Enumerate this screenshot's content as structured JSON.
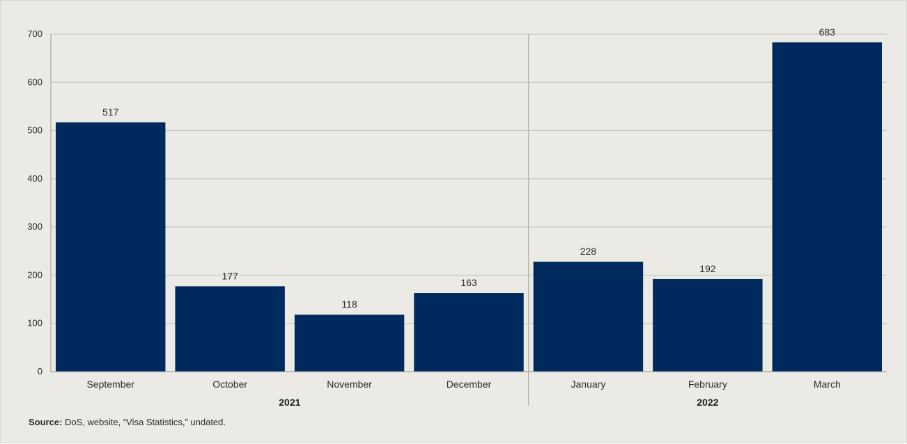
{
  "chart_data": {
    "type": "bar",
    "title": "",
    "xlabel": "",
    "ylabel": "",
    "categories": [
      "September",
      "October",
      "November",
      "December",
      "January",
      "February",
      "March"
    ],
    "values": [
      517,
      177,
      118,
      163,
      228,
      192,
      683
    ],
    "data_labels": [
      "517",
      "177",
      "118",
      "163",
      "228",
      "192",
      "683"
    ],
    "groups": [
      {
        "label": "2021",
        "categories": [
          "September",
          "October",
          "November",
          "December"
        ]
      },
      {
        "label": "2022",
        "categories": [
          "January",
          "February",
          "March"
        ]
      }
    ],
    "ylim": [
      0,
      700
    ],
    "yticks": [
      0,
      100,
      200,
      300,
      400,
      500,
      600,
      700
    ],
    "ytick_labels": [
      "0",
      "100",
      "200",
      "300",
      "400",
      "500",
      "600",
      "700"
    ],
    "grid": "horizontal",
    "legend": "none",
    "colors": {
      "bar": "#00295e",
      "background": "#eceae4",
      "grid": "#c9c7c1",
      "text": "#2a2a2a"
    }
  },
  "source": {
    "label": "Source:",
    "text": " DoS, website, “Visa Statistics,” undated."
  }
}
